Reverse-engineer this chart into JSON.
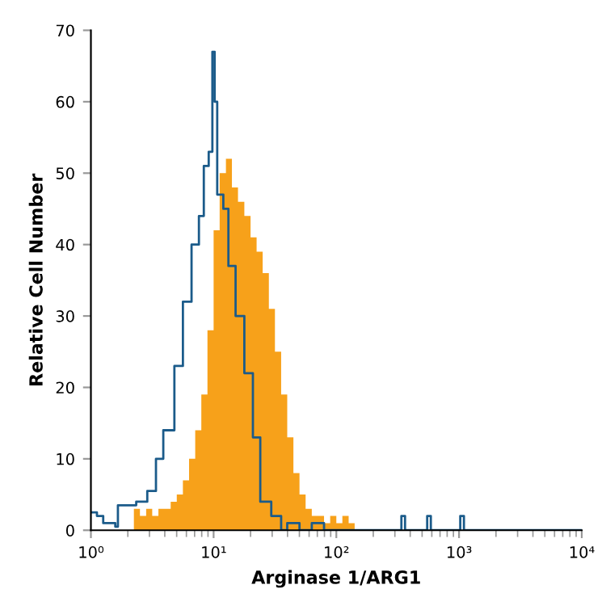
{
  "chart_data": {
    "type": "area",
    "xlabel": "Arginase 1/ARG1",
    "ylabel": "Relative Cell Number",
    "log": "x",
    "xlim": [
      1,
      10000
    ],
    "xticks": [
      {
        "value": 1,
        "label": "10⁰"
      },
      {
        "value": 10,
        "label": "10¹"
      },
      {
        "value": 100,
        "label": "10²"
      },
      {
        "value": 1000,
        "label": "10³"
      },
      {
        "value": 10000,
        "label": "10⁴"
      }
    ],
    "ylim": [
      0,
      70
    ],
    "yticks": [
      0,
      10,
      20,
      30,
      40,
      50,
      60,
      70
    ],
    "grid": false,
    "legend": false,
    "series": [
      {
        "color": "#f7a11a",
        "x": [
          2.24,
          2.51,
          2.82,
          3.16,
          3.55,
          3.98,
          4.47,
          5.01,
          5.62,
          6.31,
          7.08,
          7.94,
          8.91,
          10,
          11.2,
          12.6,
          14.1,
          15.8,
          17.8,
          20.0,
          22.4,
          25.1,
          28.2,
          31.6,
          35.5,
          39.8,
          44.7,
          50.1,
          56.2,
          63.1,
          70.8,
          79.4,
          89.1,
          100,
          112,
          126,
          141
        ],
        "values": [
          3,
          2,
          3,
          2,
          3,
          3,
          4,
          5,
          7,
          10,
          14,
          19,
          28,
          42,
          50,
          52,
          48,
          46,
          44,
          41,
          39,
          36,
          31,
          25,
          19,
          13,
          8,
          5,
          3,
          2,
          2,
          1,
          2,
          1,
          2,
          1,
          0
        ]
      },
      {
        "type": "step",
        "color": "#1b5b8a",
        "x": [
          1,
          1.12,
          1.26,
          1.58,
          1.66,
          2.34,
          2.88,
          3.39,
          3.89,
          4.79,
          5.62,
          6.61,
          7.59,
          8.32,
          9.12,
          9.77,
          10.2,
          10.7,
          12.0,
          13.2,
          15.1,
          17.8,
          20.9,
          24.0,
          29.5,
          35.5,
          39.8,
          50.1,
          63.1,
          79.4,
          100,
          316,
          339,
          363,
          525,
          550,
          589,
          977,
          1023,
          1096,
          1585,
          10000
        ],
        "values": [
          2.5,
          2,
          1,
          0.5,
          3.5,
          4,
          5.5,
          10,
          14,
          23,
          32,
          40,
          44,
          51,
          53,
          67,
          60,
          47,
          45,
          37,
          30,
          22,
          13,
          4,
          2,
          0,
          1,
          0,
          1,
          0,
          0,
          0,
          2,
          0,
          0,
          2,
          0,
          0,
          2,
          0,
          0,
          0
        ]
      }
    ]
  }
}
